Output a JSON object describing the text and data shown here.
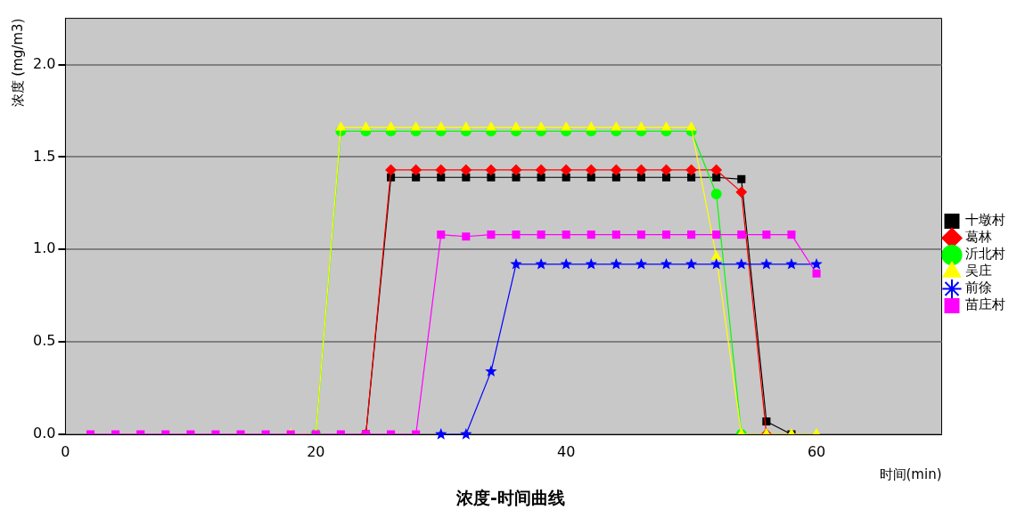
{
  "chart_data": {
    "type": "line",
    "title": "浓度-时间曲线",
    "xlabel": "时间(min)",
    "ylabel": "浓度 (mg/m3)",
    "x": [
      2,
      4,
      6,
      8,
      10,
      12,
      14,
      16,
      18,
      20,
      22,
      24,
      26,
      28,
      30,
      32,
      34,
      36,
      38,
      40,
      42,
      44,
      46,
      48,
      50,
      52,
      54,
      56,
      58,
      60
    ],
    "xlim": [
      0,
      70
    ],
    "xticks": [
      0,
      20,
      40,
      60
    ],
    "ylim": [
      0,
      2.25
    ],
    "yticks": [
      {
        "value": 0,
        "label": "0.0"
      },
      {
        "value": 0.5,
        "label": "0.5"
      },
      {
        "value": 1,
        "label": "1.0"
      },
      {
        "value": 1.5,
        "label": "1.5"
      },
      {
        "value": 2,
        "label": "2.0"
      }
    ],
    "grid": "y",
    "legend": "right",
    "line_style": "solid",
    "series": [
      {
        "name": "十墩村",
        "color": "#000000",
        "marker": "square",
        "values": [
          null,
          null,
          null,
          null,
          null,
          null,
          null,
          null,
          null,
          null,
          null,
          0,
          1.39,
          1.39,
          1.39,
          1.39,
          1.39,
          1.39,
          1.39,
          1.39,
          1.39,
          1.39,
          1.39,
          1.39,
          1.39,
          1.39,
          1.38,
          0.07,
          0,
          null
        ]
      },
      {
        "name": "葛林",
        "color": "#ff0000",
        "marker": "diamond",
        "values": [
          null,
          null,
          null,
          null,
          null,
          null,
          null,
          null,
          null,
          null,
          null,
          0,
          1.43,
          1.43,
          1.43,
          1.43,
          1.43,
          1.43,
          1.43,
          1.43,
          1.43,
          1.43,
          1.43,
          1.43,
          1.43,
          1.43,
          1.31,
          0,
          null,
          null
        ]
      },
      {
        "name": "沂北村",
        "color": "#00ff00",
        "marker": "circle",
        "values": [
          null,
          null,
          null,
          null,
          null,
          null,
          null,
          null,
          null,
          0,
          1.64,
          1.64,
          1.64,
          1.64,
          1.64,
          1.64,
          1.64,
          1.64,
          1.64,
          1.64,
          1.64,
          1.64,
          1.64,
          1.64,
          1.64,
          1.3,
          0,
          null,
          null,
          null
        ]
      },
      {
        "name": "吴庄",
        "color": "#ffff00",
        "marker": "triangle",
        "values": [
          null,
          null,
          null,
          null,
          null,
          null,
          null,
          null,
          0,
          0,
          1.66,
          1.66,
          1.66,
          1.66,
          1.66,
          1.66,
          1.66,
          1.66,
          1.66,
          1.66,
          1.66,
          1.66,
          1.66,
          1.66,
          1.66,
          0.96,
          0,
          0,
          0,
          0
        ]
      },
      {
        "name": "前徐",
        "color": "#0000ff",
        "marker": "star",
        "values": [
          null,
          null,
          null,
          null,
          null,
          null,
          null,
          null,
          null,
          null,
          null,
          null,
          null,
          null,
          0,
          0,
          0.34,
          0.92,
          0.92,
          0.92,
          0.92,
          0.92,
          0.92,
          0.92,
          0.92,
          0.92,
          0.92,
          0.92,
          0.92,
          0.92
        ]
      },
      {
        "name": "苗庄村",
        "color": "#ff00ff",
        "marker": "square",
        "values": [
          0,
          0,
          0,
          0,
          0,
          0,
          0,
          0,
          0,
          0,
          0,
          0,
          0,
          0,
          1.08,
          1.07,
          1.08,
          1.08,
          1.08,
          1.08,
          1.08,
          1.08,
          1.08,
          1.08,
          1.08,
          1.08,
          1.08,
          1.08,
          1.08,
          0.87
        ]
      }
    ]
  }
}
